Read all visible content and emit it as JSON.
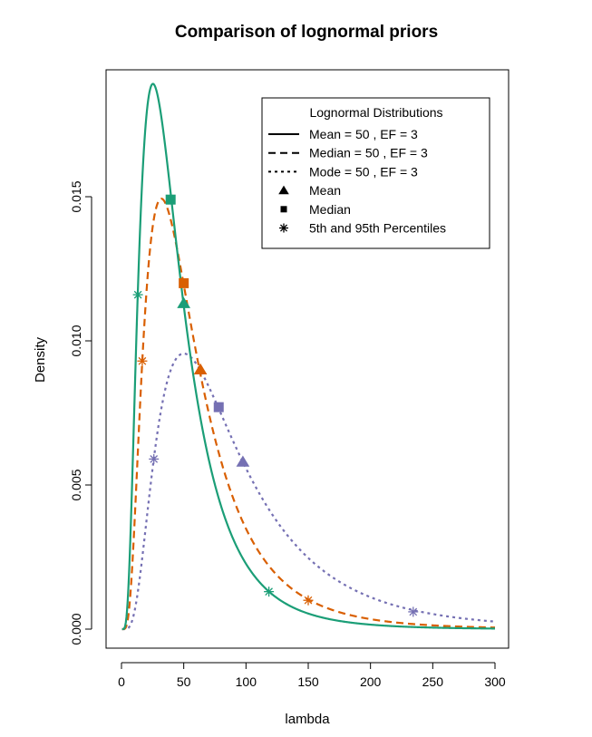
{
  "chart_data": {
    "type": "line",
    "title": "Comparison of lognormal priors",
    "xlabel": "lambda",
    "ylabel": "Density",
    "xlim": [
      0,
      300
    ],
    "ylim": [
      0,
      0.0195
    ],
    "x_ticks": [
      "0",
      "50",
      "100",
      "150",
      "200",
      "250",
      "300"
    ],
    "y_ticks": [
      "0.000",
      "0.005",
      "0.010",
      "0.015"
    ],
    "grid": false,
    "legend": {
      "title": "Lognormal Distributions",
      "position": "top-right",
      "entries": [
        {
          "label": "Mean = 50 , EF = 3",
          "symbol": "solid-line"
        },
        {
          "label": "Median = 50 , EF = 3",
          "symbol": "dashed-line"
        },
        {
          "label": "Mode = 50 , EF = 3",
          "symbol": "dotted-line"
        },
        {
          "label": "Mean",
          "symbol": "triangle"
        },
        {
          "label": "Median",
          "symbol": "square"
        },
        {
          "label": "5th and 95th Percentiles",
          "symbol": "asterisk"
        }
      ]
    },
    "series": [
      {
        "name": "Mean = 50 , EF = 3",
        "color": "#1b9e77",
        "dash": "solid",
        "median": 39.47,
        "error_factor": 3,
        "mean": [
          50,
          0.0113
        ],
        "median_point": [
          39.47,
          0.0149
        ],
        "percentiles": [
          [
            13.2,
            0.0116
          ],
          [
            118.4,
            0.0013
          ]
        ]
      },
      {
        "name": "Median = 50 , EF = 3",
        "color": "#d95f02",
        "dash": "dashed",
        "median": 50,
        "error_factor": 3,
        "mean": [
          63.4,
          0.009
        ],
        "median_point": [
          50,
          0.012
        ],
        "percentiles": [
          [
            16.7,
            0.0093
          ],
          [
            150,
            0.001
          ]
        ]
      },
      {
        "name": "Mode = 50 , EF = 3",
        "color": "#7570b3",
        "dash": "dotted",
        "median": 78.1,
        "error_factor": 3,
        "mean": [
          97.5,
          0.0058
        ],
        "median_point": [
          78.1,
          0.0077
        ],
        "percentiles": [
          [
            26.0,
            0.0059
          ],
          [
            234.3,
            0.0006
          ]
        ]
      }
    ]
  }
}
